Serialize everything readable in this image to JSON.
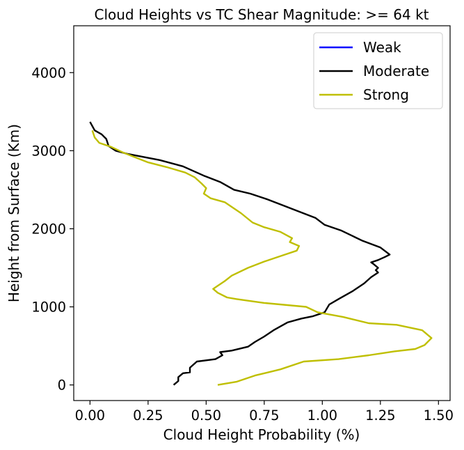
{
  "chart_data": {
    "type": "line",
    "title": "Cloud Heights vs TC Shear Magnitude: >= 64 kt",
    "xlabel": "Cloud Height Probability (%)",
    "ylabel": "Height from Surface (Km)",
    "xlim": [
      -0.07,
      1.55
    ],
    "ylim": [
      -200,
      4600
    ],
    "xticks": [
      0.0,
      0.25,
      0.5,
      0.75,
      1.0,
      1.25,
      1.5
    ],
    "xtick_labels": [
      "0.00",
      "0.25",
      "0.50",
      "0.75",
      "1.00",
      "1.25",
      "1.50"
    ],
    "yticks": [
      0,
      1000,
      2000,
      3000,
      4000
    ],
    "ytick_labels": [
      "0",
      "1000",
      "2000",
      "3000",
      "4000"
    ],
    "legend_position": "upper right",
    "series": [
      {
        "name": "Weak",
        "color": "#0000ff",
        "points": []
      },
      {
        "name": "Moderate",
        "color": "#000000",
        "points": [
          [
            0.36,
            0
          ],
          [
            0.38,
            50
          ],
          [
            0.38,
            100
          ],
          [
            0.4,
            150
          ],
          [
            0.43,
            160
          ],
          [
            0.43,
            220
          ],
          [
            0.46,
            300
          ],
          [
            0.54,
            330
          ],
          [
            0.57,
            380
          ],
          [
            0.56,
            420
          ],
          [
            0.61,
            440
          ],
          [
            0.68,
            490
          ],
          [
            0.71,
            550
          ],
          [
            0.75,
            620
          ],
          [
            0.79,
            700
          ],
          [
            0.85,
            800
          ],
          [
            0.91,
            850
          ],
          [
            0.96,
            880
          ],
          [
            1.01,
            930
          ],
          [
            1.02,
            980
          ],
          [
            1.03,
            1030
          ],
          [
            1.07,
            1100
          ],
          [
            1.13,
            1200
          ],
          [
            1.18,
            1300
          ],
          [
            1.21,
            1380
          ],
          [
            1.24,
            1440
          ],
          [
            1.23,
            1470
          ],
          [
            1.24,
            1500
          ],
          [
            1.22,
            1550
          ],
          [
            1.21,
            1570
          ],
          [
            1.24,
            1600
          ],
          [
            1.27,
            1640
          ],
          [
            1.29,
            1670
          ],
          [
            1.25,
            1760
          ],
          [
            1.17,
            1850
          ],
          [
            1.08,
            1980
          ],
          [
            1.01,
            2050
          ],
          [
            0.97,
            2140
          ],
          [
            0.9,
            2220
          ],
          [
            0.83,
            2300
          ],
          [
            0.76,
            2380
          ],
          [
            0.69,
            2450
          ],
          [
            0.62,
            2500
          ],
          [
            0.56,
            2600
          ],
          [
            0.49,
            2680
          ],
          [
            0.4,
            2800
          ],
          [
            0.3,
            2880
          ],
          [
            0.16,
            2960
          ],
          [
            0.11,
            3000
          ],
          [
            0.08,
            3060
          ],
          [
            0.07,
            3150
          ],
          [
            0.05,
            3210
          ],
          [
            0.02,
            3260
          ],
          [
            0.0,
            3370
          ]
        ]
      },
      {
        "name": "Strong",
        "color": "#bfbf00",
        "points": [
          [
            0.55,
            0
          ],
          [
            0.63,
            40
          ],
          [
            0.71,
            120
          ],
          [
            0.82,
            200
          ],
          [
            0.92,
            300
          ],
          [
            1.07,
            330
          ],
          [
            1.2,
            380
          ],
          [
            1.31,
            430
          ],
          [
            1.4,
            460
          ],
          [
            1.44,
            510
          ],
          [
            1.47,
            600
          ],
          [
            1.43,
            700
          ],
          [
            1.32,
            770
          ],
          [
            1.2,
            790
          ],
          [
            1.09,
            870
          ],
          [
            0.98,
            930
          ],
          [
            0.93,
            1000
          ],
          [
            0.75,
            1050
          ],
          [
            0.63,
            1100
          ],
          [
            0.59,
            1120
          ],
          [
            0.55,
            1180
          ],
          [
            0.53,
            1230
          ],
          [
            0.55,
            1270
          ],
          [
            0.58,
            1330
          ],
          [
            0.61,
            1400
          ],
          [
            0.68,
            1500
          ],
          [
            0.75,
            1580
          ],
          [
            0.83,
            1660
          ],
          [
            0.89,
            1720
          ],
          [
            0.9,
            1780
          ],
          [
            0.86,
            1830
          ],
          [
            0.87,
            1880
          ],
          [
            0.82,
            1960
          ],
          [
            0.75,
            2020
          ],
          [
            0.7,
            2080
          ],
          [
            0.65,
            2200
          ],
          [
            0.58,
            2340
          ],
          [
            0.52,
            2390
          ],
          [
            0.49,
            2450
          ],
          [
            0.5,
            2520
          ],
          [
            0.48,
            2580
          ],
          [
            0.45,
            2660
          ],
          [
            0.41,
            2720
          ],
          [
            0.33,
            2790
          ],
          [
            0.25,
            2850
          ],
          [
            0.19,
            2920
          ],
          [
            0.14,
            2980
          ],
          [
            0.09,
            3050
          ],
          [
            0.04,
            3100
          ],
          [
            0.02,
            3170
          ],
          [
            0.01,
            3260
          ]
        ]
      }
    ]
  }
}
